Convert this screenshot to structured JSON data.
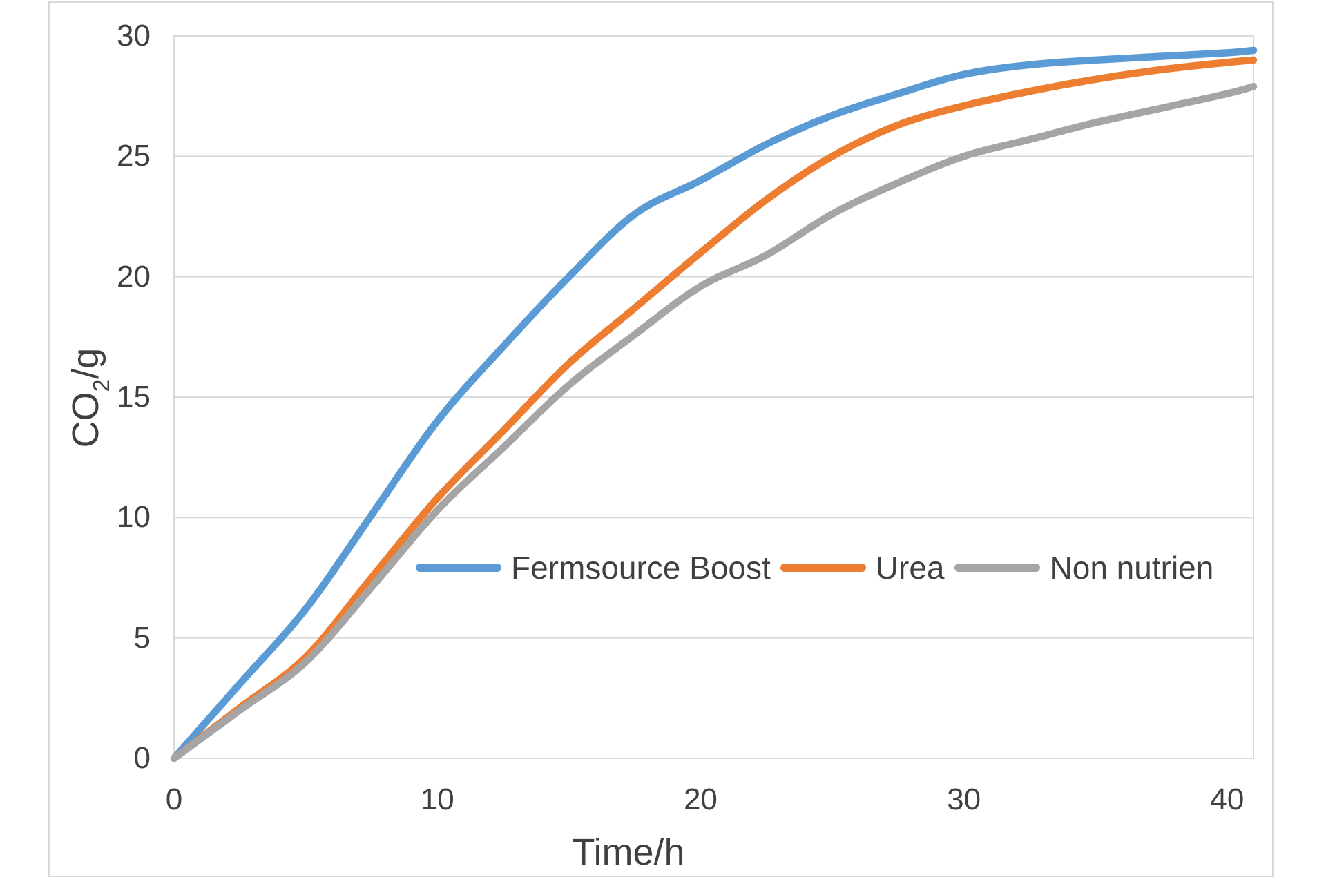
{
  "chart_data": {
    "type": "line",
    "title": "",
    "xlabel": "Time/h",
    "ylabel": "CO2/g",
    "ylabel_parts": {
      "pre": "CO",
      "sub": "2",
      "post": "/g"
    },
    "xlim": [
      0,
      41
    ],
    "ylim": [
      0,
      30
    ],
    "xticks": [
      0,
      10,
      20,
      30,
      40
    ],
    "yticks": [
      0,
      5,
      10,
      15,
      20,
      25,
      30
    ],
    "grid": "horizontal-only",
    "legend_position": "inside-plot-lower-right",
    "colors": {
      "gridline": "#d9d9d9",
      "plot_border": "#d9d9d9",
      "text": "#404040"
    },
    "x": [
      0,
      2.5,
      5,
      7.5,
      10,
      12.5,
      15,
      17.5,
      20,
      22.5,
      25,
      27.5,
      30,
      32.5,
      35,
      37.5,
      40,
      41
    ],
    "series": [
      {
        "name": "Fermsource Boost",
        "color": "#5b9bd5",
        "values": [
          0,
          3.1,
          6.2,
          10.1,
          14.0,
          17.1,
          20.0,
          22.6,
          24.0,
          25.5,
          26.7,
          27.6,
          28.4,
          28.8,
          29.0,
          29.15,
          29.3,
          29.4
        ]
      },
      {
        "name": "Urea",
        "color": "#ed7d31",
        "values": [
          0,
          2.1,
          4.2,
          7.5,
          10.8,
          13.6,
          16.4,
          18.7,
          21.0,
          23.2,
          25.0,
          26.3,
          27.1,
          27.7,
          28.2,
          28.6,
          28.9,
          29.0
        ]
      },
      {
        "name": "Non nutrien",
        "color": "#a5a5a5",
        "values": [
          0,
          2.0,
          4.0,
          7.1,
          10.3,
          12.9,
          15.5,
          17.6,
          19.6,
          20.9,
          22.6,
          23.9,
          25.0,
          25.7,
          26.4,
          27.0,
          27.6,
          27.9
        ]
      }
    ]
  }
}
